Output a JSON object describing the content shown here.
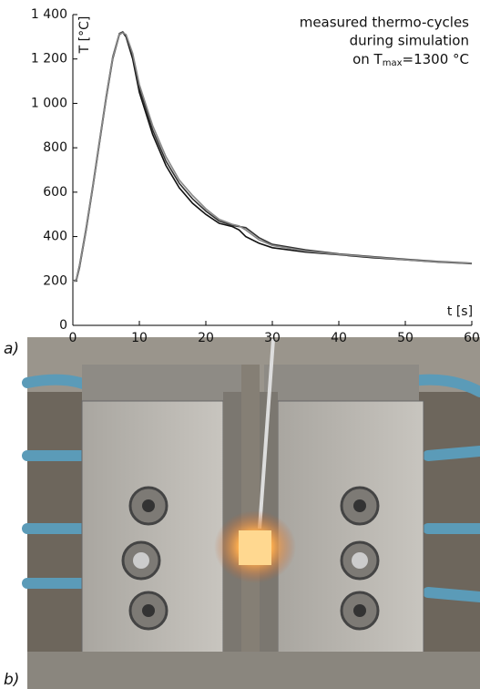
{
  "chart_data": {
    "type": "line",
    "y_label": "T [°C]",
    "x_label": "t [s]",
    "annotation": {
      "line1": "measured thermo-cycles",
      "line2": "during simulation",
      "line3_a": "on T",
      "line3_sub": "max",
      "line3_b": "=1300 °C"
    },
    "panel_a": "a)",
    "panel_b": "b)",
    "x": [
      0,
      0.5,
      1,
      2,
      3,
      4,
      5,
      6,
      7,
      7.5,
      8,
      9,
      10,
      12,
      14,
      16,
      18,
      20,
      22,
      24,
      25,
      26,
      28,
      30,
      35,
      40,
      45,
      50,
      55,
      60
    ],
    "series": [
      {
        "color": "#111111",
        "values": [
          200,
          200,
          260,
          430,
          620,
          820,
          1020,
          1200,
          1310,
          1320,
          1300,
          1200,
          1050,
          860,
          720,
          620,
          550,
          500,
          460,
          445,
          430,
          400,
          370,
          350,
          330,
          318,
          305,
          295,
          285,
          278
        ]
      },
      {
        "color": "#333333",
        "values": [
          200,
          205,
          270,
          440,
          630,
          830,
          1030,
          1210,
          1315,
          1322,
          1305,
          1215,
          1070,
          880,
          740,
          640,
          570,
          515,
          470,
          450,
          445,
          440,
          395,
          365,
          340,
          322,
          310,
          298,
          288,
          280
        ]
      },
      {
        "color": "#888888",
        "values": [
          198,
          202,
          265,
          435,
          625,
          825,
          1025,
          1205,
          1312,
          1318,
          1310,
          1225,
          1085,
          900,
          760,
          655,
          585,
          525,
          478,
          455,
          448,
          430,
          385,
          360,
          335,
          320,
          308,
          296,
          286,
          279
        ]
      }
    ],
    "xlim": [
      0,
      60
    ],
    "xticks": [
      0,
      10,
      20,
      30,
      40,
      50,
      60
    ],
    "ylim": [
      0,
      1400
    ],
    "yticks": [
      0,
      200,
      400,
      600,
      800,
      {
        "value": 1000,
        "label": "1 000"
      },
      {
        "value": 1200,
        "label": "1 200"
      },
      {
        "value": 1400,
        "label": "1 400"
      }
    ],
    "grid": false
  }
}
